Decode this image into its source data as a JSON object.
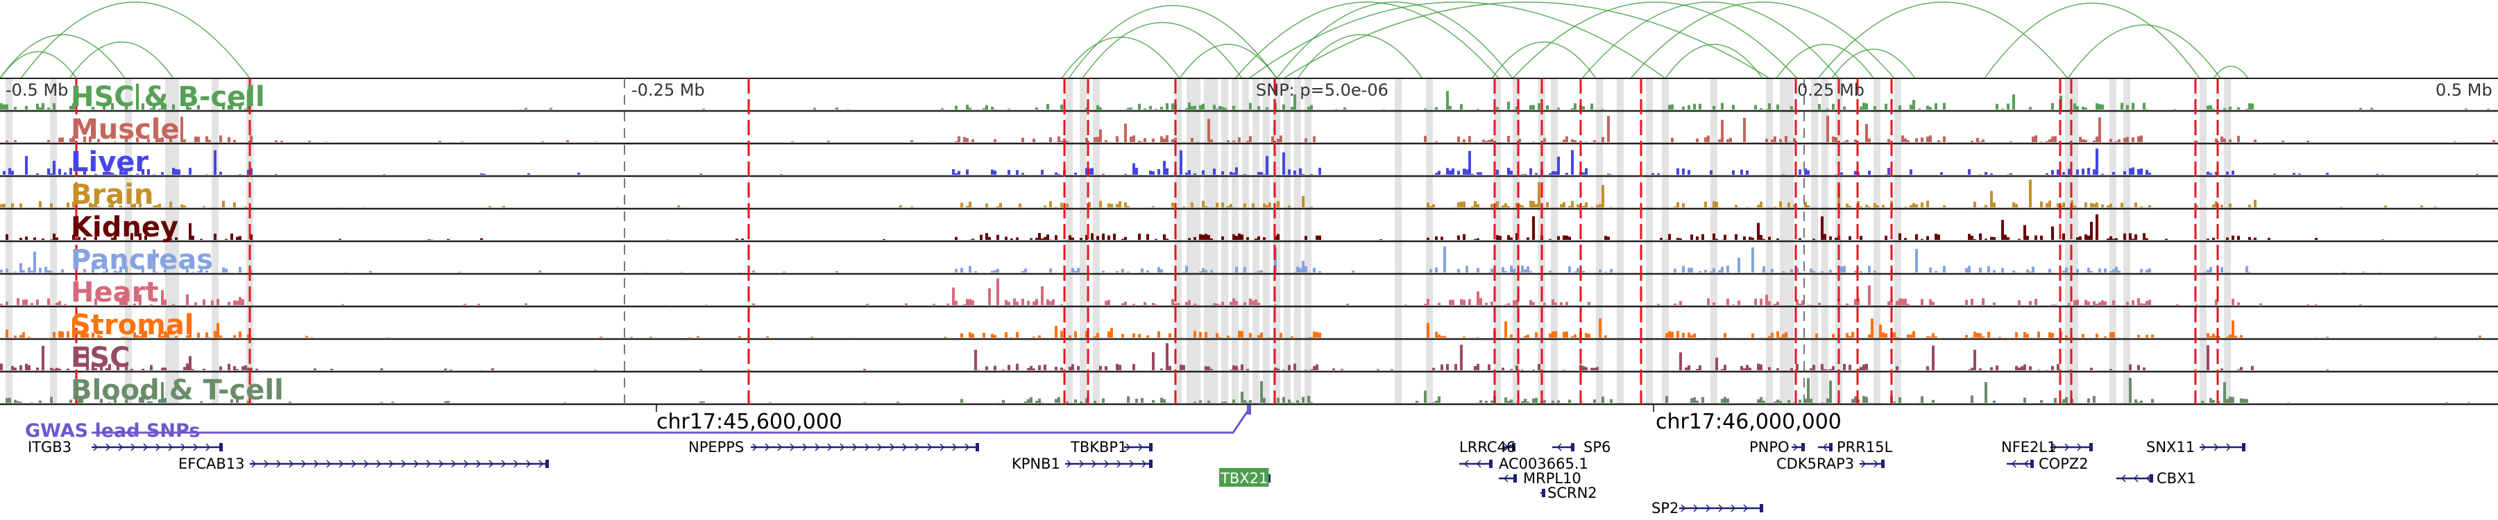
{
  "axis": {
    "left": "-0.5 Mb",
    "left_mid": "-0.25 Mb",
    "snp": "SNP: p=5.0e-06",
    "right_mid": "0.25 Mb",
    "right": "0.5 Mb"
  },
  "tracks": [
    {
      "label": "HSC & B-cell",
      "color": "#55a155"
    },
    {
      "label": "Muscle",
      "color": "#c4665c"
    },
    {
      "label": "Liver",
      "color": "#4646e6"
    },
    {
      "label": "Brain",
      "color": "#c69028"
    },
    {
      "label": "Kidney",
      "color": "#680000"
    },
    {
      "label": "Pancreas",
      "color": "#86a2e2"
    },
    {
      "label": "Heart",
      "color": "#d66a7c"
    },
    {
      "label": "Stromal",
      "color": "#ff720e"
    },
    {
      "label": "ESC",
      "color": "#9a4866"
    },
    {
      "label": "Blood & T-cell",
      "color": "#6a8c6a"
    }
  ],
  "coordinates": [
    "chr17:45,600,000",
    "chr17:46,000,000"
  ],
  "gwas": {
    "label": "GWAS lead SNPs",
    "color": "#6a5acd"
  },
  "genes": [
    "ITGB3",
    "EFCAB13",
    "NPEPPS",
    "TBKBP1",
    "KPNB1",
    "TBX21",
    "LRRC46",
    "SP6",
    "AC003665.1",
    "MRPL10",
    "SCRN2",
    "SP2",
    "PNPO",
    "PRR15L",
    "CDK5RAP3",
    "NFE2L1",
    "COPZ2",
    "SNX11",
    "CBX1"
  ],
  "highlight_gene": "TBX21",
  "highlight_color": "#4e9e4e"
}
